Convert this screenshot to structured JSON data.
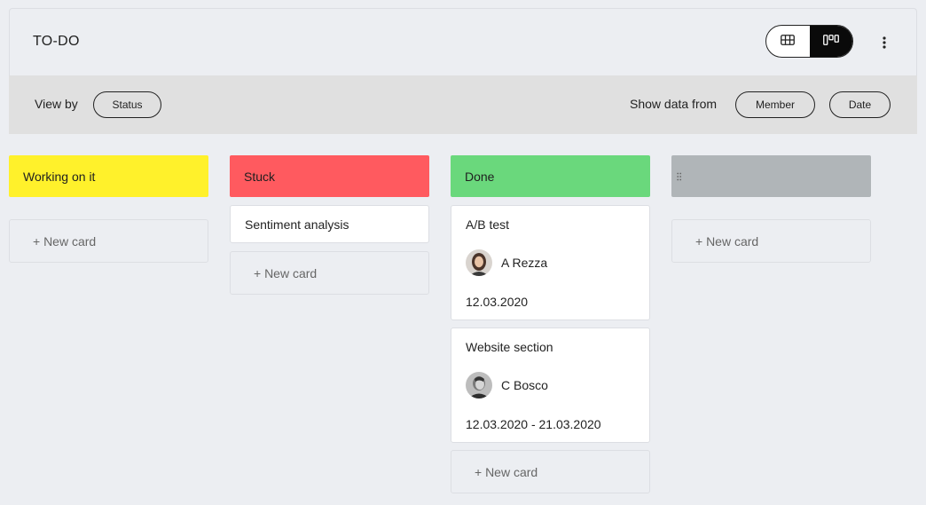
{
  "board": {
    "title": "TO-DO"
  },
  "toolbar": {
    "view_by_label": "View by",
    "view_by_value": "Status",
    "show_data_label": "Show data from",
    "member_filter": "Member",
    "date_filter": "Date"
  },
  "icons": {
    "table_view": "table-icon",
    "kanban_view": "kanban-icon",
    "more": "more-vertical-icon",
    "drag": "drag-handle-icon"
  },
  "colors": {
    "working": "#fff12b",
    "stuck": "#ff5a5f",
    "done": "#6ad87c",
    "empty": "#b0b5b8"
  },
  "columns": [
    {
      "label": "Working on it",
      "new_card": "+ New card"
    },
    {
      "label": "Stuck",
      "new_card": "+ New card",
      "cards": [
        {
          "title": "Sentiment analysis"
        }
      ]
    },
    {
      "label": "Done",
      "new_card": "+ New card",
      "cards": [
        {
          "title": "A/B test",
          "member": "A Rezza",
          "date": "12.03.2020"
        },
        {
          "title": "Website section",
          "member": "C Bosco",
          "date": "12.03.2020 - 21.03.2020"
        }
      ]
    },
    {
      "label": "",
      "new_card": "+ New card"
    }
  ]
}
